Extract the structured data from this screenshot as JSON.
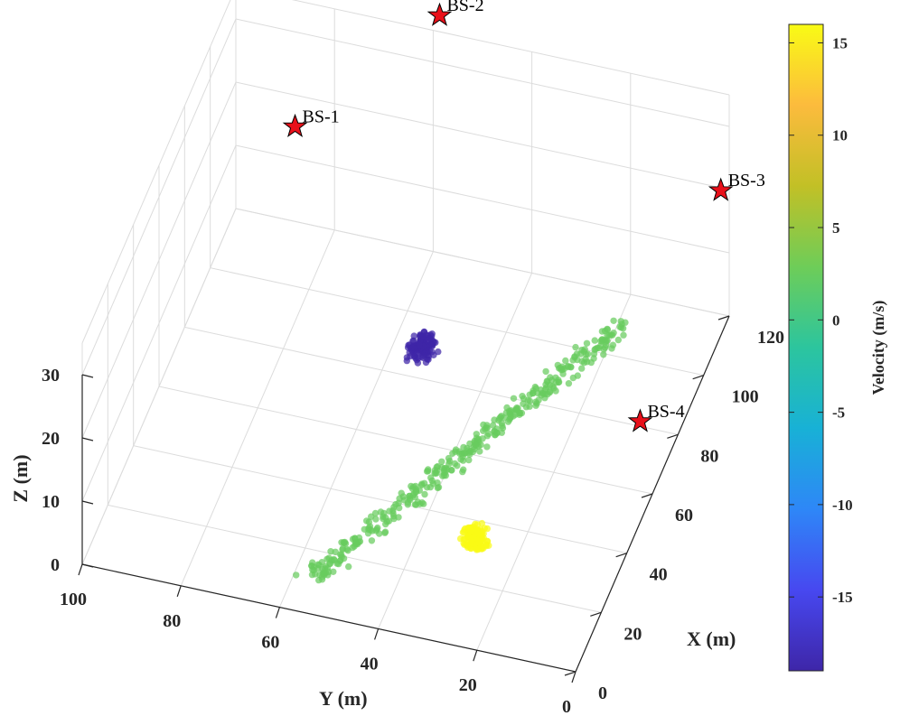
{
  "chart_data": {
    "type": "scatter",
    "xlabel": "X (m)",
    "ylabel": "Y (m)",
    "zlabel": "Z (m)",
    "xlim": [
      0,
      120
    ],
    "ylim": [
      0,
      100
    ],
    "zlim": [
      0,
      30
    ],
    "x_ticks": [
      "0",
      "20",
      "40",
      "60",
      "80",
      "100",
      "120"
    ],
    "y_ticks": [
      "0",
      "20",
      "40",
      "60",
      "80",
      "100"
    ],
    "z_ticks": [
      "0",
      "10",
      "20",
      "30"
    ],
    "grid": true,
    "colorbar": {
      "label": "Velocity (m/s)",
      "range": [
        -19,
        16
      ],
      "ticks": [
        "-15",
        "-10",
        "-5",
        "0",
        "5",
        "10",
        "15"
      ],
      "tick_values": [
        -15,
        -10,
        -5,
        0,
        5,
        10,
        15
      ],
      "colormap": "parula",
      "colors": [
        "#3e26a8",
        "#4748f0",
        "#2e87f7",
        "#18b1d6",
        "#2cc59e",
        "#6ecd58",
        "#c2c026",
        "#fcbb3d",
        "#f9fb15"
      ]
    },
    "base_stations": [
      {
        "label": "BS-1",
        "x": 120,
        "y": 88,
        "z": 15
      },
      {
        "label": "BS-2",
        "x": 125,
        "y": 60,
        "z": 35
      },
      {
        "label": "BS-3",
        "x": 125,
        "y": 3,
        "z": 17
      },
      {
        "label": "BS-4",
        "x": 62,
        "y": 3,
        "z": 10
      }
    ],
    "clusters": [
      {
        "label": "",
        "center": [
          80,
          52,
          5
        ],
        "spread": [
          3.5,
          2.5,
          1.5
        ],
        "count": 130,
        "velocity": -19
      },
      {
        "label": "",
        "center": [
          25,
          27,
          5
        ],
        "spread": [
          3.5,
          2.5,
          1.5
        ],
        "count": 130,
        "velocity": 16
      }
    ],
    "track": {
      "start": [
        5,
        55,
        3
      ],
      "end": [
        95,
        15,
        8
      ],
      "count": 380,
      "velocity": 2.5,
      "lateral_spread": 3
    }
  }
}
